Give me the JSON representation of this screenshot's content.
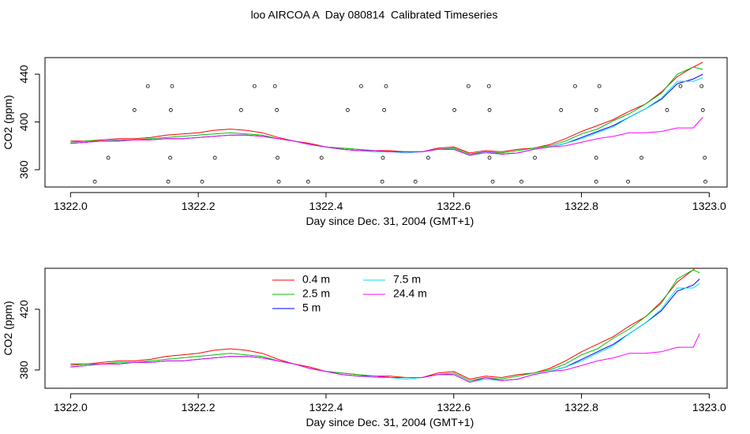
{
  "title": "loo AIRCOA A  Day 080814  Calibrated Timeseries",
  "chart_data": [
    {
      "type": "line",
      "ylabel": "CO2 (ppm)",
      "xlabel": "Day since Dec. 31, 2004 (GMT+1)",
      "xlim": [
        1321.96,
        1323.028
      ],
      "ylim": [
        345.5,
        453.9
      ],
      "xticks": [
        {
          "value": 1322.0,
          "label": "1322.0"
        },
        {
          "value": 1322.2,
          "label": "1322.2"
        },
        {
          "value": 1322.4,
          "label": "1322.4"
        },
        {
          "value": 1322.6,
          "label": "1322.6"
        },
        {
          "value": 1322.8,
          "label": "1322.8"
        },
        {
          "value": 1323.0,
          "label": "1323.0"
        }
      ],
      "yticks": [
        360,
        400,
        440
      ],
      "x": [
        1322.0,
        1322.025,
        1322.05,
        1322.075,
        1322.1,
        1322.125,
        1322.15,
        1322.175,
        1322.2,
        1322.225,
        1322.25,
        1322.275,
        1322.3,
        1322.325,
        1322.35,
        1322.375,
        1322.4,
        1322.425,
        1322.45,
        1322.475,
        1322.5,
        1322.525,
        1322.55,
        1322.575,
        1322.6,
        1322.625,
        1322.65,
        1322.675,
        1322.7,
        1322.725,
        1322.75,
        1322.775,
        1322.8,
        1322.825,
        1322.85,
        1322.875,
        1322.9,
        1322.925,
        1322.95,
        1322.975,
        1322.99
      ],
      "series": [
        {
          "name": "0.4 m",
          "color": "#ff0000",
          "values": [
            384,
            384,
            385,
            386,
            386,
            387,
            389,
            390,
            391,
            393,
            394,
            393,
            391,
            387,
            384,
            382,
            379,
            378,
            377,
            376,
            376,
            375,
            375,
            378,
            379,
            374,
            376,
            375,
            377,
            378,
            381,
            386,
            392,
            397,
            402,
            409,
            415,
            425,
            438,
            446,
            450
          ]
        },
        {
          "name": "2.5 m",
          "color": "#00c000",
          "values": [
            383,
            384,
            384,
            385,
            385,
            386,
            387,
            388,
            389,
            390,
            391,
            390,
            389,
            386,
            384,
            381,
            379,
            378,
            377,
            376,
            375,
            375,
            375,
            377,
            378,
            373,
            375,
            374,
            376,
            378,
            380,
            384,
            390,
            394,
            401,
            407,
            415,
            424,
            440,
            446,
            444
          ]
        },
        {
          "name": "5 m",
          "color": "#0000ff",
          "values": [
            382,
            383,
            384,
            384,
            385,
            385,
            386,
            386,
            387,
            388,
            389,
            389,
            388,
            386,
            384,
            381,
            379,
            377,
            376,
            376,
            375,
            375,
            375,
            377,
            377,
            372,
            375,
            373,
            374,
            377,
            379,
            382,
            387,
            392,
            397,
            404,
            411,
            419,
            432,
            436,
            440
          ]
        },
        {
          "name": "7.5 m",
          "color": "#00e0e0",
          "values": [
            382,
            383,
            384,
            384,
            385,
            385,
            386,
            386,
            387,
            388,
            389,
            389,
            388,
            386,
            384,
            381,
            379,
            377,
            376,
            375,
            375,
            374,
            375,
            377,
            377,
            372,
            374,
            373,
            374,
            377,
            379,
            382,
            386,
            391,
            396,
            404,
            411,
            420,
            434,
            434,
            437
          ]
        },
        {
          "name": "24.4 m",
          "color": "#ff00ff",
          "values": [
            382,
            383,
            384,
            384,
            385,
            385,
            386,
            386,
            387,
            388,
            389,
            389,
            388,
            386,
            384,
            381,
            379,
            377,
            376,
            376,
            375,
            375,
            375,
            377,
            377,
            372,
            375,
            373,
            374,
            377,
            379,
            380,
            383,
            386,
            388,
            391,
            391,
            392,
            395,
            395,
            404
          ]
        }
      ],
      "points": {
        "x": [
          1322.038,
          1322.153,
          1322.206,
          1322.326,
          1322.372,
          1322.488,
          1322.54,
          1322.661,
          1322.706,
          1322.823,
          1322.873,
          1322.994,
          1322.059,
          1322.156,
          1322.226,
          1322.324,
          1322.393,
          1322.489,
          1322.56,
          1322.656,
          1322.727,
          1322.823,
          1322.894,
          1322.993,
          1322.1,
          1322.157,
          1322.267,
          1322.323,
          1322.434,
          1322.491,
          1322.601,
          1322.656,
          1322.768,
          1322.823,
          1322.934,
          1322.99,
          1322.121,
          1322.159,
          1322.288,
          1322.32,
          1322.455,
          1322.494,
          1322.623,
          1322.655,
          1322.79,
          1322.828,
          1322.955,
          1322.988
        ],
        "values": [
          350,
          350,
          350,
          350,
          350,
          350,
          350,
          350,
          350,
          350,
          350,
          350,
          370,
          370,
          370,
          370,
          370,
          370,
          370,
          370,
          370,
          370,
          370,
          370,
          410,
          410,
          410,
          410,
          410,
          410,
          410,
          410,
          410,
          410,
          410,
          410,
          430,
          430,
          430,
          430,
          430,
          430,
          430,
          430,
          430,
          430,
          430,
          430
        ]
      }
    },
    {
      "type": "line",
      "ylabel": "CO2 (ppm)",
      "xlabel": "Day since Dec. 31, 2004 (GMT+1)",
      "xlim": [
        1321.96,
        1323.028
      ],
      "ylim": [
        368,
        447
      ],
      "legend": "top-left",
      "xticks": [
        {
          "value": 1322.0,
          "label": "1322.0"
        },
        {
          "value": 1322.2,
          "label": "1322.2"
        },
        {
          "value": 1322.4,
          "label": "1322.4"
        },
        {
          "value": 1322.6,
          "label": "1322.6"
        },
        {
          "value": 1322.8,
          "label": "1322.8"
        },
        {
          "value": 1323.0,
          "label": "1323.0"
        }
      ],
      "yticks": [
        380,
        420
      ],
      "x": [
        1322.0,
        1322.025,
        1322.05,
        1322.075,
        1322.1,
        1322.125,
        1322.15,
        1322.175,
        1322.2,
        1322.225,
        1322.25,
        1322.275,
        1322.3,
        1322.325,
        1322.35,
        1322.375,
        1322.4,
        1322.425,
        1322.45,
        1322.475,
        1322.5,
        1322.525,
        1322.55,
        1322.575,
        1322.6,
        1322.625,
        1322.65,
        1322.675,
        1322.7,
        1322.725,
        1322.75,
        1322.775,
        1322.8,
        1322.825,
        1322.85,
        1322.875,
        1322.9,
        1322.925,
        1322.95,
        1322.975,
        1322.985
      ],
      "series": [
        {
          "name": "0.4 m",
          "color": "#ff0000",
          "values": [
            384,
            384,
            385,
            386,
            386,
            387,
            389,
            390,
            391,
            393,
            394,
            393,
            391,
            387,
            384,
            382,
            379,
            378,
            377,
            376,
            376,
            375,
            375,
            378,
            379,
            374,
            376,
            375,
            377,
            378,
            381,
            386,
            392,
            397,
            402,
            409,
            415,
            425,
            438,
            446,
            450
          ]
        },
        {
          "name": "2.5 m",
          "color": "#00c000",
          "values": [
            383,
            384,
            384,
            385,
            385,
            386,
            387,
            388,
            389,
            390,
            391,
            390,
            389,
            386,
            384,
            381,
            379,
            378,
            377,
            376,
            375,
            375,
            375,
            377,
            378,
            373,
            375,
            374,
            376,
            378,
            380,
            384,
            390,
            394,
            401,
            407,
            415,
            424,
            440,
            446,
            444
          ]
        },
        {
          "name": "5 m",
          "color": "#0000ff",
          "values": [
            382,
            383,
            384,
            384,
            385,
            385,
            386,
            386,
            387,
            388,
            389,
            389,
            388,
            386,
            384,
            381,
            379,
            377,
            376,
            376,
            375,
            375,
            375,
            377,
            377,
            372,
            375,
            373,
            374,
            377,
            379,
            382,
            387,
            392,
            397,
            404,
            411,
            419,
            432,
            436,
            440
          ]
        },
        {
          "name": "7.5 m",
          "color": "#00e0e0",
          "values": [
            382,
            383,
            384,
            384,
            385,
            385,
            386,
            386,
            387,
            388,
            389,
            389,
            388,
            386,
            384,
            381,
            379,
            377,
            376,
            375,
            375,
            374,
            375,
            377,
            377,
            372,
            374,
            373,
            374,
            377,
            379,
            382,
            386,
            391,
            396,
            404,
            411,
            420,
            434,
            434,
            437
          ]
        },
        {
          "name": "24.4 m",
          "color": "#ff00ff",
          "values": [
            382,
            383,
            384,
            384,
            385,
            385,
            386,
            386,
            387,
            388,
            389,
            389,
            388,
            386,
            384,
            381,
            379,
            377,
            376,
            376,
            375,
            375,
            375,
            377,
            377,
            372,
            375,
            373,
            374,
            377,
            379,
            380,
            383,
            386,
            388,
            391,
            391,
            392,
            395,
            395,
            404
          ]
        }
      ]
    }
  ]
}
